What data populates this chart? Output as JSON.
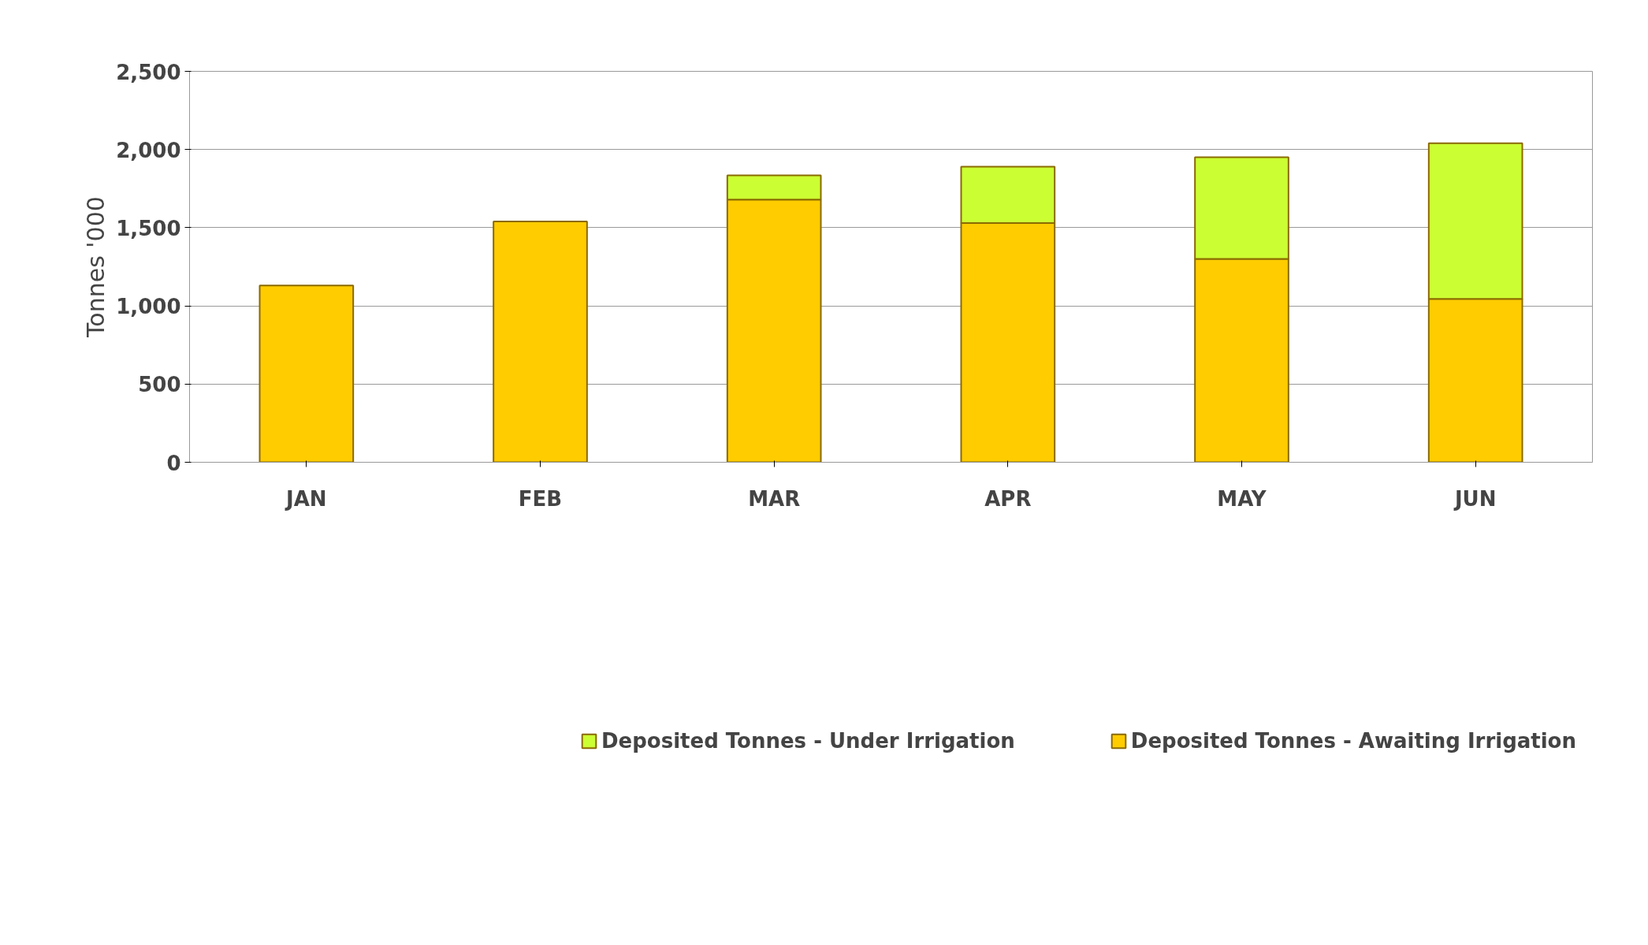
{
  "chart_data": {
    "type": "bar",
    "stacked": true,
    "ylabel": "Tonnes '000",
    "categories": [
      "JAN",
      "FEB",
      "MAR",
      "APR",
      "MAY",
      "JUN"
    ],
    "series": [
      {
        "name": "Deposited Tonnes - Awaiting Irrigation",
        "color": "#ffcc00",
        "values": [
          1130,
          1540,
          1680,
          1530,
          1300,
          1045
        ]
      },
      {
        "name": "Deposited Tonnes - Under Irrigation",
        "color": "#ccff33",
        "values": [
          null,
          null,
          155,
          360,
          650,
          995
        ]
      }
    ],
    "ylim": [
      0,
      2500
    ],
    "yticks": [
      0,
      {
        "value": 500,
        "label": "500"
      },
      {
        "value": 1000,
        "label": "1,000"
      },
      {
        "value": 1500,
        "label": "1,500"
      },
      {
        "value": 2000,
        "label": "2,000"
      },
      {
        "value": 2500,
        "label": "2,500"
      }
    ],
    "grid": "y",
    "legend": "bottom"
  }
}
